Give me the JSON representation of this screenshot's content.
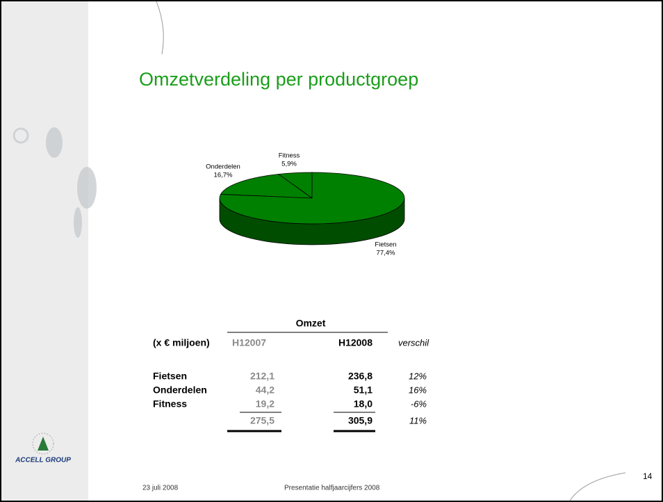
{
  "title": "Omzetverdeling per productgroep",
  "chart_data": {
    "type": "pie",
    "categories": [
      "Fietsen",
      "Onderdelen",
      "Fitness"
    ],
    "values": [
      77.4,
      16.7,
      5.9
    ],
    "value_labels": [
      "77,4%",
      "16,7%",
      "5,9%"
    ],
    "colors": [
      "#008000",
      "#008000",
      "#008000"
    ]
  },
  "table": {
    "group_header": "Omzet",
    "header": [
      "(x € miljoen)",
      "H12007",
      "H12008",
      "verschil"
    ],
    "rows": [
      [
        "Fietsen",
        "212,1",
        "236,8",
        "12%"
      ],
      [
        "Onderdelen",
        "44,2",
        "51,1",
        "16%"
      ],
      [
        "Fitness",
        "19,2",
        "18,0",
        "-6%"
      ]
    ],
    "total": [
      "275,5",
      "305,9",
      "11%"
    ]
  },
  "logo": "ACCELL GROUP",
  "footer": {
    "date": "23 juli 2008",
    "center": "Presentatie halfjaarcijfers 2008",
    "page": "14"
  }
}
